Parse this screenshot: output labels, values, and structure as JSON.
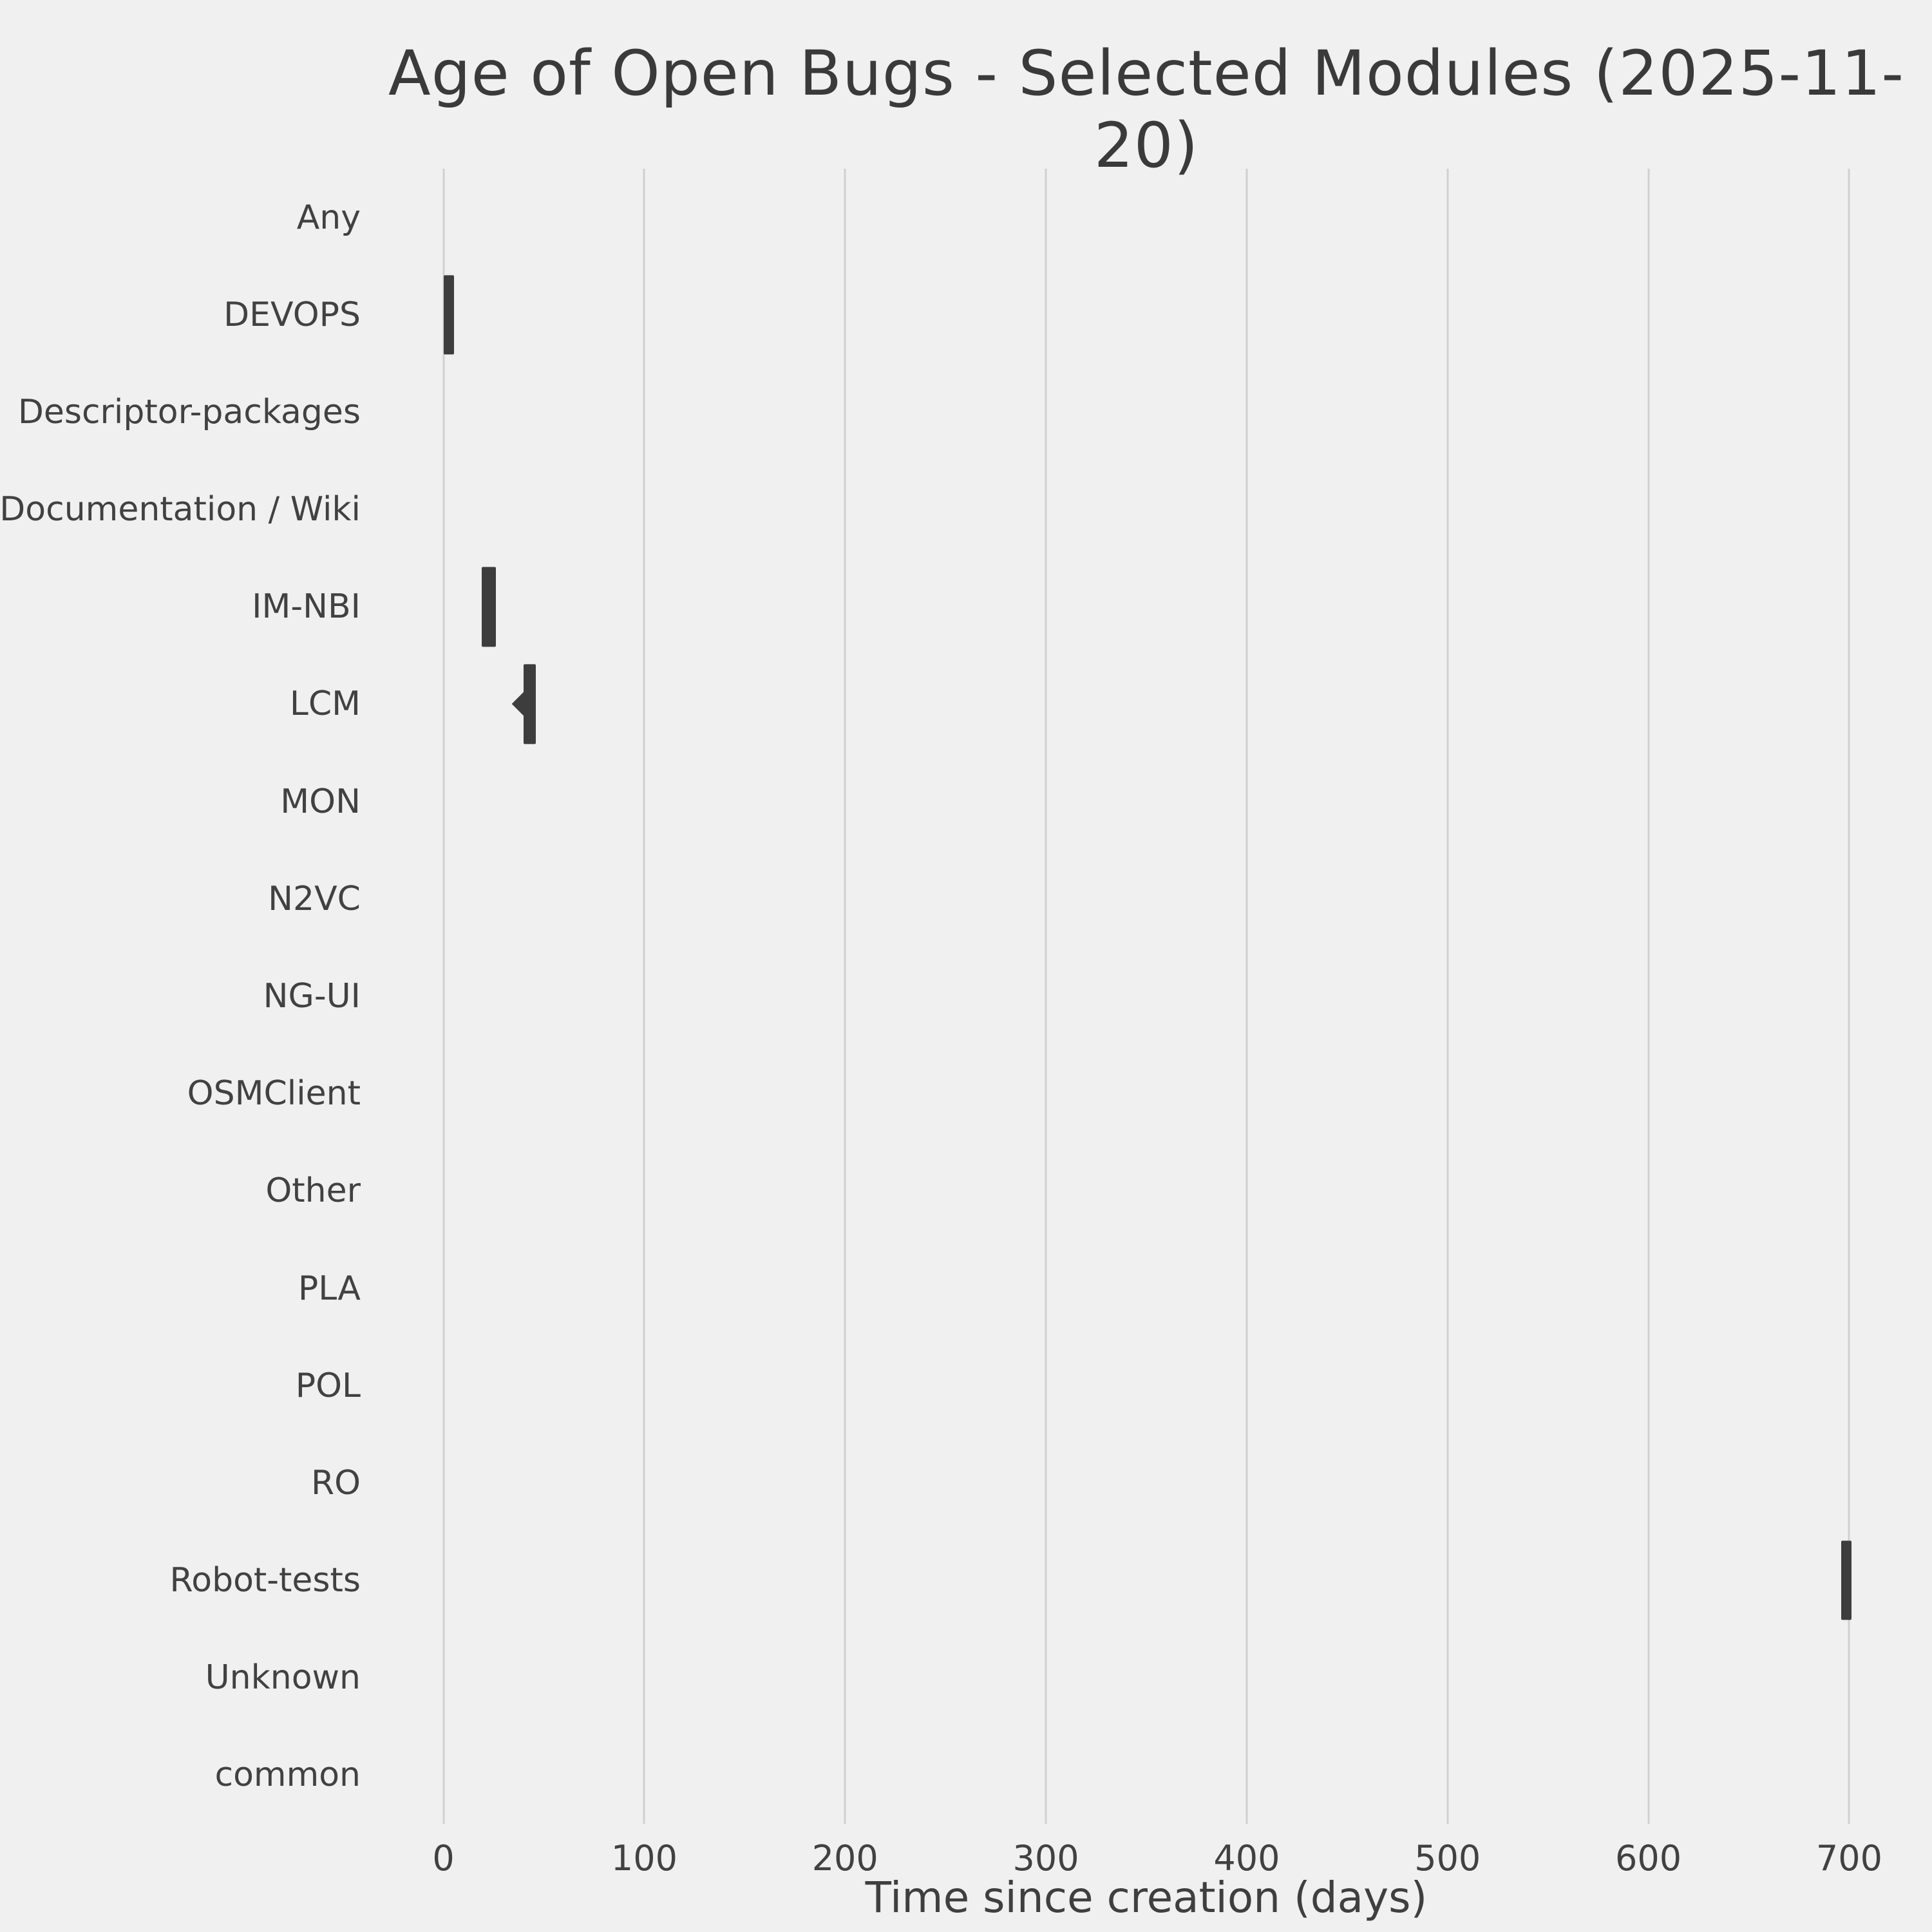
{
  "title": "Age of Open Bugs - Selected Modules (2025-11-20)",
  "xlabel": "Time since creation (days)",
  "chart_data": {
    "type": "boxplot",
    "orientation": "horizontal",
    "title": "Age of Open Bugs - Selected Modules (2025-11-20)",
    "xlabel": "Time since creation (days)",
    "ylabel": "",
    "categories": [
      "Any",
      "DEVOPS",
      "Descriptor-packages",
      "Documentation / Wiki",
      "IM-NBI",
      "LCM",
      "MON",
      "N2VC",
      "NG-UI",
      "OSMClient",
      "Other",
      "PLA",
      "POL",
      "RO",
      "Robot-tests",
      "Unknown",
      "common"
    ],
    "series": [
      {
        "module": "DEVOPS",
        "min": 0,
        "max": 4
      },
      {
        "module": "IM-NBI",
        "min": 19,
        "max": 26
      },
      {
        "module": "LCM",
        "min": 40,
        "max": 46,
        "marker": 40
      },
      {
        "module": "Robot-tests",
        "min": 696,
        "max": 701
      }
    ],
    "x_ticks": [
      0,
      100,
      200,
      300,
      400,
      500,
      600,
      700
    ],
    "xlim": [
      -30,
      730
    ],
    "grid": true,
    "legend": false,
    "colors": {
      "background": "#f0f0f0",
      "grid": "#d0d0d0",
      "bar": "#3d3d3d",
      "text": "#3f3f3f"
    }
  }
}
